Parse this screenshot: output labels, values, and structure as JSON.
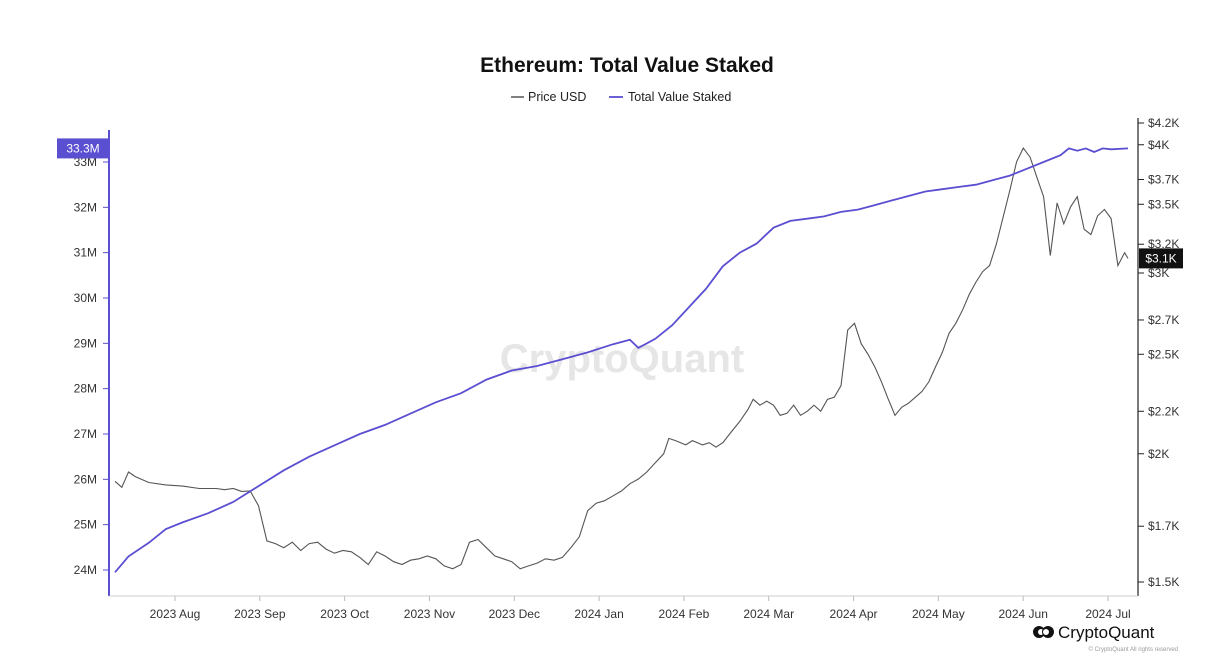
{
  "chart_data": {
    "type": "line",
    "title": "Ethereum: Total Value Staked",
    "legend": [
      {
        "name": "Price USD",
        "color": "#555555"
      },
      {
        "name": "Total Value Staked",
        "color": "#5b4fd1"
      }
    ],
    "x_axis": {
      "labels": [
        "2023 Aug",
        "2023 Sep",
        "2023 Oct",
        "2023 Nov",
        "2023 Dec",
        "2024 Jan",
        "2024 Feb",
        "2024 Mar",
        "2024 Apr",
        "2024 May",
        "2024 Jun",
        "2024 Jul"
      ],
      "range": [
        "2023-07-16",
        "2024-07-20"
      ]
    },
    "left_axis": {
      "ticks": [
        {
          "value": 24,
          "label": "24M"
        },
        {
          "value": 25,
          "label": "25M"
        },
        {
          "value": 26,
          "label": "26M"
        },
        {
          "value": 27,
          "label": "27M"
        },
        {
          "value": 28,
          "label": "28M"
        },
        {
          "value": 29,
          "label": "29M"
        },
        {
          "value": 30,
          "label": "30M"
        },
        {
          "value": 31,
          "label": "31M"
        },
        {
          "value": 32,
          "label": "32M"
        },
        {
          "value": 33,
          "label": "33M"
        }
      ],
      "range": [
        23.8,
        33.4
      ],
      "current_label": "33.3M",
      "current_value": 33.3,
      "color": "#5b4fd1"
    },
    "right_axis": {
      "scale": "log",
      "ticks": [
        {
          "value": 1500,
          "label": "$1.5K"
        },
        {
          "value": 1700,
          "label": "$1.7K"
        },
        {
          "value": 2000,
          "label": "$2K"
        },
        {
          "value": 2200,
          "label": "$2.2K"
        },
        {
          "value": 2500,
          "label": "$2.5K"
        },
        {
          "value": 2700,
          "label": "$2.7K"
        },
        {
          "value": 3000,
          "label": "$3K"
        },
        {
          "value": 3200,
          "label": "$3.2K"
        },
        {
          "value": 3500,
          "label": "$3.5K"
        },
        {
          "value": 3700,
          "label": "$3.7K"
        },
        {
          "value": 4000,
          "label": "$4K"
        },
        {
          "value": 4200,
          "label": "$4.2K"
        }
      ],
      "range": [
        1470,
        4250
      ],
      "current_label": "$3.1K",
      "current_value": 3100,
      "color": "#111111"
    },
    "series": [
      {
        "name": "Total Value Staked",
        "axis": "left",
        "unit": "M",
        "color": "#5b4fd1",
        "points": [
          [
            0,
            23.95
          ],
          [
            8,
            24.3
          ],
          [
            20,
            24.6
          ],
          [
            30,
            24.9
          ],
          [
            40,
            25.05
          ],
          [
            55,
            25.25
          ],
          [
            70,
            25.5
          ],
          [
            85,
            25.85
          ],
          [
            100,
            26.2
          ],
          [
            115,
            26.5
          ],
          [
            130,
            26.75
          ],
          [
            145,
            27.0
          ],
          [
            160,
            27.2
          ],
          [
            175,
            27.45
          ],
          [
            190,
            27.7
          ],
          [
            205,
            27.9
          ],
          [
            220,
            28.2
          ],
          [
            235,
            28.4
          ],
          [
            250,
            28.5
          ],
          [
            265,
            28.65
          ],
          [
            280,
            28.8
          ],
          [
            295,
            28.98
          ],
          [
            305,
            29.08
          ],
          [
            310,
            28.9
          ],
          [
            320,
            29.1
          ],
          [
            330,
            29.4
          ],
          [
            340,
            29.8
          ],
          [
            350,
            30.2
          ],
          [
            360,
            30.7
          ],
          [
            370,
            31.0
          ],
          [
            380,
            31.2
          ],
          [
            390,
            31.55
          ],
          [
            400,
            31.7
          ],
          [
            410,
            31.75
          ],
          [
            420,
            31.8
          ],
          [
            430,
            31.9
          ],
          [
            440,
            31.95
          ],
          [
            450,
            32.05
          ],
          [
            460,
            32.15
          ],
          [
            470,
            32.25
          ],
          [
            480,
            32.35
          ],
          [
            490,
            32.4
          ],
          [
            500,
            32.45
          ],
          [
            510,
            32.5
          ],
          [
            520,
            32.6
          ],
          [
            530,
            32.7
          ],
          [
            540,
            32.85
          ],
          [
            550,
            33.0
          ],
          [
            560,
            33.15
          ],
          [
            565,
            33.3
          ],
          [
            570,
            33.25
          ],
          [
            575,
            33.3
          ],
          [
            580,
            33.22
          ],
          [
            585,
            33.3
          ],
          [
            590,
            33.28
          ],
          [
            600,
            33.3
          ]
        ]
      },
      {
        "name": "Price USD",
        "axis": "right",
        "unit": "USD",
        "color": "#555555",
        "points": [
          [
            0,
            1880
          ],
          [
            4,
            1855
          ],
          [
            8,
            1920
          ],
          [
            12,
            1900
          ],
          [
            20,
            1875
          ],
          [
            30,
            1865
          ],
          [
            40,
            1860
          ],
          [
            50,
            1850
          ],
          [
            60,
            1850
          ],
          [
            65,
            1845
          ],
          [
            70,
            1850
          ],
          [
            75,
            1838
          ],
          [
            80,
            1840
          ],
          [
            85,
            1780
          ],
          [
            90,
            1645
          ],
          [
            95,
            1635
          ],
          [
            100,
            1620
          ],
          [
            105,
            1640
          ],
          [
            110,
            1610
          ],
          [
            115,
            1635
          ],
          [
            120,
            1640
          ],
          [
            125,
            1615
          ],
          [
            130,
            1600
          ],
          [
            135,
            1610
          ],
          [
            140,
            1605
          ],
          [
            145,
            1585
          ],
          [
            150,
            1560
          ],
          [
            155,
            1605
          ],
          [
            160,
            1590
          ],
          [
            165,
            1570
          ],
          [
            170,
            1560
          ],
          [
            175,
            1575
          ],
          [
            180,
            1580
          ],
          [
            185,
            1590
          ],
          [
            190,
            1580
          ],
          [
            195,
            1555
          ],
          [
            200,
            1545
          ],
          [
            205,
            1560
          ],
          [
            210,
            1640
          ],
          [
            215,
            1650
          ],
          [
            220,
            1620
          ],
          [
            225,
            1590
          ],
          [
            230,
            1580
          ],
          [
            235,
            1570
          ],
          [
            240,
            1545
          ],
          [
            245,
            1555
          ],
          [
            250,
            1565
          ],
          [
            255,
            1580
          ],
          [
            260,
            1575
          ],
          [
            265,
            1585
          ],
          [
            270,
            1620
          ],
          [
            275,
            1660
          ],
          [
            280,
            1760
          ],
          [
            285,
            1790
          ],
          [
            290,
            1800
          ],
          [
            295,
            1820
          ],
          [
            300,
            1840
          ],
          [
            305,
            1870
          ],
          [
            310,
            1890
          ],
          [
            315,
            1920
          ],
          [
            320,
            1960
          ],
          [
            325,
            2000
          ],
          [
            328,
            2070
          ],
          [
            332,
            2060
          ],
          [
            338,
            2040
          ],
          [
            342,
            2060
          ],
          [
            348,
            2040
          ],
          [
            352,
            2050
          ],
          [
            356,
            2030
          ],
          [
            360,
            2050
          ],
          [
            365,
            2100
          ],
          [
            370,
            2150
          ],
          [
            375,
            2210
          ],
          [
            378,
            2260
          ],
          [
            382,
            2230
          ],
          [
            386,
            2250
          ],
          [
            390,
            2230
          ],
          [
            394,
            2180
          ],
          [
            398,
            2190
          ],
          [
            402,
            2230
          ],
          [
            406,
            2180
          ],
          [
            410,
            2200
          ],
          [
            414,
            2230
          ],
          [
            418,
            2200
          ],
          [
            422,
            2260
          ],
          [
            426,
            2270
          ],
          [
            430,
            2330
          ],
          [
            434,
            2640
          ],
          [
            438,
            2680
          ],
          [
            442,
            2560
          ],
          [
            446,
            2500
          ],
          [
            450,
            2430
          ],
          [
            454,
            2350
          ],
          [
            458,
            2260
          ],
          [
            462,
            2180
          ],
          [
            466,
            2220
          ],
          [
            470,
            2240
          ],
          [
            474,
            2270
          ],
          [
            478,
            2300
          ],
          [
            482,
            2350
          ],
          [
            486,
            2430
          ],
          [
            490,
            2510
          ],
          [
            494,
            2620
          ],
          [
            498,
            2680
          ],
          [
            502,
            2760
          ],
          [
            506,
            2860
          ],
          [
            510,
            2940
          ],
          [
            514,
            3010
          ],
          [
            518,
            3050
          ],
          [
            522,
            3200
          ],
          [
            526,
            3400
          ],
          [
            530,
            3610
          ],
          [
            534,
            3850
          ],
          [
            538,
            3970
          ],
          [
            542,
            3890
          ],
          [
            546,
            3720
          ],
          [
            550,
            3560
          ],
          [
            554,
            3120
          ],
          [
            558,
            3510
          ],
          [
            562,
            3350
          ],
          [
            566,
            3480
          ],
          [
            570,
            3560
          ],
          [
            574,
            3310
          ],
          [
            578,
            3270
          ],
          [
            582,
            3410
          ],
          [
            586,
            3460
          ],
          [
            590,
            3390
          ],
          [
            594,
            3050
          ],
          [
            598,
            3140
          ],
          [
            600,
            3100
          ]
        ]
      }
    ]
  },
  "branding": {
    "watermark": "CryptoQuant",
    "logo_text": "CryptoQuant",
    "footnote": "© CryptoQuant All rights reserved"
  }
}
